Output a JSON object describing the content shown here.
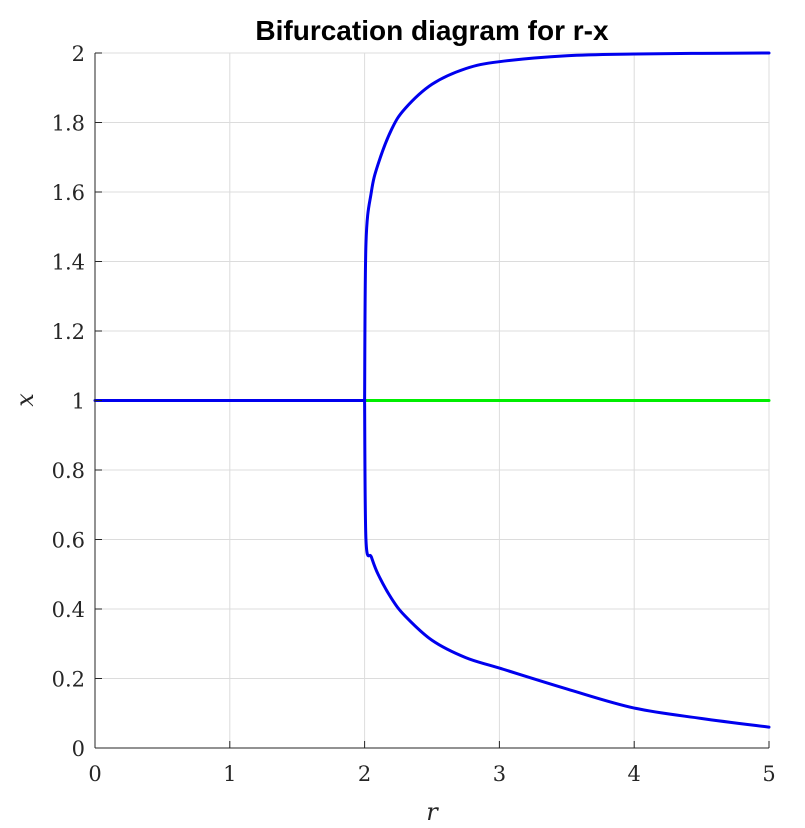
{
  "chart_data": {
    "type": "line",
    "title": "Bifurcation diagram for r-x",
    "xlabel": "r",
    "ylabel": "x",
    "xlim": [
      0,
      5
    ],
    "ylim": [
      0,
      2
    ],
    "grid": true,
    "x_ticks": [
      "0",
      "1",
      "2",
      "3",
      "4",
      "5"
    ],
    "y_ticks": [
      "0",
      "0.2",
      "0.4",
      "0.6",
      "0.8",
      "1",
      "1.2",
      "1.4",
      "1.6",
      "1.8",
      "2"
    ],
    "series": [
      {
        "color": "#0000ee",
        "points": [
          [
            0,
            1
          ],
          [
            1,
            1
          ],
          [
            2,
            1
          ]
        ]
      },
      {
        "color": "#00ee00",
        "points": [
          [
            2,
            1
          ],
          [
            3,
            1
          ],
          [
            4,
            1
          ],
          [
            5,
            1
          ]
        ]
      },
      {
        "color": "#0000ee",
        "points": [
          [
            2,
            1
          ],
          [
            2.01,
            1.45
          ],
          [
            2.05,
            1.6
          ],
          [
            2.1,
            1.68
          ],
          [
            2.2,
            1.78
          ],
          [
            2.3,
            1.84
          ],
          [
            2.5,
            1.91
          ],
          [
            2.75,
            1.955
          ],
          [
            3,
            1.975
          ],
          [
            3.5,
            1.992
          ],
          [
            4,
            1.997
          ],
          [
            4.5,
            1.999
          ],
          [
            5,
            2
          ]
        ]
      },
      {
        "color": "#0000ee",
        "points": [
          [
            2,
            1
          ],
          [
            2.01,
            0.6
          ],
          [
            2.05,
            0.55
          ],
          [
            2.1,
            0.5
          ],
          [
            2.2,
            0.43
          ],
          [
            2.3,
            0.38
          ],
          [
            2.5,
            0.31
          ],
          [
            2.75,
            0.26
          ],
          [
            3,
            0.23
          ],
          [
            3.5,
            0.17
          ],
          [
            4,
            0.115
          ],
          [
            4.5,
            0.085
          ],
          [
            5,
            0.06
          ]
        ]
      }
    ]
  }
}
